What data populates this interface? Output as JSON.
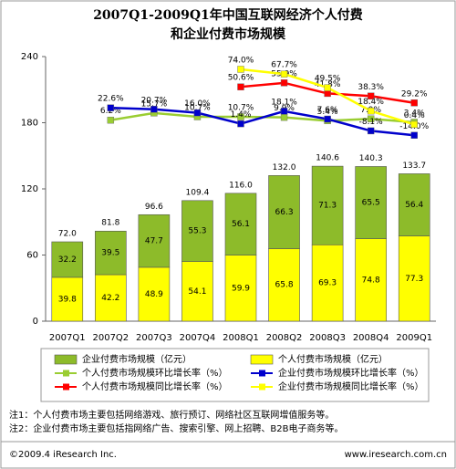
{
  "chart_data": {
    "type": "bar",
    "title": [
      "2007Q1-2009Q1年中国互联网经济个人付费",
      "和企业付费市场规模"
    ],
    "categories": [
      "2007Q1",
      "2007Q2",
      "2007Q3",
      "2007Q4",
      "2008Q1",
      "2008Q2",
      "2008Q3",
      "2008Q4",
      "2009Q1"
    ],
    "ylim": [
      0,
      240
    ],
    "yticks": [
      0,
      60,
      120,
      180,
      240
    ],
    "y2lim": [
      -262,
      91
    ],
    "grid": false,
    "series": [
      {
        "name": "企业付费市场规模（亿元）",
        "type": "bar",
        "color": "#8dbb2a",
        "values": [
          32.2,
          39.5,
          47.7,
          55.3,
          56.1,
          66.3,
          71.3,
          65.5,
          56.4
        ]
      },
      {
        "name": "个人付费市场规模（亿元）",
        "type": "bar",
        "color": "#ffff00",
        "values": [
          39.8,
          42.2,
          48.9,
          54.1,
          59.9,
          65.8,
          69.3,
          74.8,
          77.3
        ]
      },
      {
        "name": "个人付费市场规模环比增长率（%）",
        "type": "line",
        "axis": "y2",
        "color": "#9acd32",
        "values": [
          null,
          6.2,
          15.7,
          10.7,
          10.7,
          9.9,
          5.4,
          7.9,
          3.4
        ],
        "value_labels": [
          null,
          "6.2%",
          "15.7%",
          "10.7%",
          "10.7%",
          "9.9%",
          "5.4%",
          "7.9%",
          "3.4%"
        ]
      },
      {
        "name": "企业付费市场规模环比增长率（%）",
        "type": "line",
        "axis": "y2",
        "color": "#0000cc",
        "values": [
          null,
          22.6,
          20.7,
          16.0,
          1.4,
          18.1,
          7.6,
          -8.1,
          -14.0
        ],
        "value_labels": [
          null,
          "22.6%",
          "20.7%",
          "16.0%",
          "1.4%",
          "18.1%",
          "7.6%",
          "-8.1%",
          "-14.0%"
        ]
      },
      {
        "name": "个人付费市场规模同比增长率（%）",
        "type": "line",
        "axis": "y2",
        "color": "#ff0000",
        "values": [
          null,
          null,
          null,
          null,
          50.6,
          55.9,
          41.8,
          38.3,
          29.2
        ],
        "value_labels": [
          null,
          null,
          null,
          null,
          "50.6%",
          "55.9%",
          "41.8%",
          "38.3%",
          "29.2%"
        ]
      },
      {
        "name": "企业付费市场规模同比增长率（%）",
        "type": "line",
        "axis": "y2",
        "color": "#ffff00",
        "values": [
          null,
          null,
          null,
          null,
          74.0,
          67.7,
          49.5,
          18.4,
          0.4
        ],
        "value_labels": [
          null,
          null,
          null,
          null,
          "74.0%",
          "67.7%",
          "49.5%",
          "18.4%",
          "0.4%"
        ]
      }
    ],
    "totals": {
      "values": [
        72.0,
        81.8,
        96.6,
        109.4,
        116.0,
        132.0,
        140.6,
        140.3,
        133.7
      ],
      "value_labels": [
        "72.0",
        "81.8",
        "96.6",
        "109.4",
        "116.0",
        "132.0",
        "140.6",
        "140.3",
        "133.7"
      ]
    },
    "notes": [
      "注1：个人付费市场主要包括网络游戏、旅行预订、网络社区互联网增值服务等。",
      "注2：企业付费市场主要包括指网络广告、搜索引擎、网上招聘、B2B电子商务等。"
    ],
    "footer": {
      "left": "©2009.4 iResearch Inc.",
      "right": "www.iresearch.com.cn"
    }
  }
}
